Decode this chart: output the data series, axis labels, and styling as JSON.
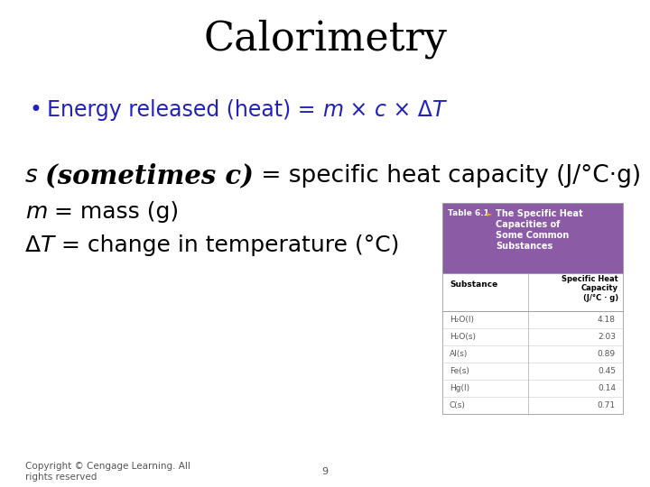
{
  "title": "Calorimetry",
  "title_fontsize": 32,
  "title_color": "#000000",
  "background_color": "#ffffff",
  "bullet_color": "#2222bb",
  "text_color": "#000000",
  "table_header_bg": "#8B5CA5",
  "table_header_text": "#ffffff",
  "table_label": "Table 6.1",
  "table_title": "The Specific Heat\nCapacities of\nSome Common\nSubstances",
  "table_substances": [
    "H₂O(l)",
    "H₂O(s)",
    "Al(s)",
    "Fe(s)",
    "Hg(l)",
    "C(s)"
  ],
  "table_values": [
    "4.18",
    "2.03",
    "0.89",
    "0.45",
    "0.14",
    "0.71"
  ],
  "footer_left": "Copyright © Cengage Learning. All\nrights reserved",
  "footer_center": "9"
}
